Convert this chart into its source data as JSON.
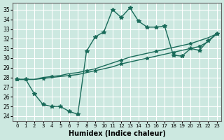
{
  "xlabel": "Humidex (Indice chaleur)",
  "bg_color": "#cce8e0",
  "grid_color": "#ffffff",
  "line_color": "#1a6b5a",
  "xlim": [
    -0.5,
    23.5
  ],
  "ylim": [
    23.5,
    35.7
  ],
  "xticks": [
    0,
    1,
    2,
    3,
    4,
    5,
    6,
    7,
    8,
    9,
    10,
    11,
    12,
    13,
    14,
    15,
    16,
    17,
    18,
    19,
    20,
    21,
    22,
    23
  ],
  "yticks": [
    24,
    25,
    26,
    27,
    28,
    29,
    30,
    31,
    32,
    33,
    34,
    35
  ],
  "line1_x": [
    0,
    1,
    2,
    3,
    4,
    5,
    6,
    7,
    8,
    9,
    10,
    11,
    12,
    13,
    14,
    15,
    16,
    17,
    18,
    19,
    20,
    21,
    22,
    23
  ],
  "line1_y": [
    27.8,
    27.8,
    27.8,
    27.9,
    28.0,
    28.1,
    28.2,
    28.3,
    28.5,
    28.7,
    28.9,
    29.1,
    29.4,
    29.6,
    29.8,
    30.0,
    30.2,
    30.4,
    30.6,
    30.8,
    31.0,
    31.2,
    31.7,
    32.5
  ],
  "line1_markevery": [
    0,
    3,
    6,
    9,
    12,
    15,
    18,
    21,
    23
  ],
  "line2_x": [
    0,
    1,
    2,
    3,
    4,
    5,
    6,
    7,
    8,
    9,
    10,
    11,
    12,
    13,
    14,
    15,
    16,
    17,
    18,
    19,
    20,
    21,
    22,
    23
  ],
  "line2_y": [
    27.8,
    27.8,
    27.8,
    28.0,
    28.1,
    28.2,
    28.4,
    28.5,
    28.7,
    28.9,
    29.2,
    29.5,
    29.8,
    30.1,
    30.3,
    30.5,
    30.7,
    30.9,
    31.1,
    31.3,
    31.5,
    31.8,
    32.1,
    32.5
  ],
  "line2_markevery": [
    0,
    4,
    8,
    12,
    16,
    20,
    23
  ],
  "line3_x": [
    0,
    1,
    2,
    3,
    4,
    5,
    6,
    7,
    8,
    9,
    10,
    11,
    12,
    13,
    14,
    15,
    16,
    17,
    18,
    19,
    20,
    21,
    22,
    23
  ],
  "line3_y": [
    27.8,
    27.8,
    26.3,
    25.2,
    25.0,
    25.0,
    24.5,
    24.2,
    30.7,
    32.2,
    32.7,
    35.0,
    34.2,
    35.2,
    33.8,
    33.2,
    33.2,
    33.3,
    30.3,
    30.2,
    31.0,
    30.8,
    31.8,
    32.5
  ]
}
